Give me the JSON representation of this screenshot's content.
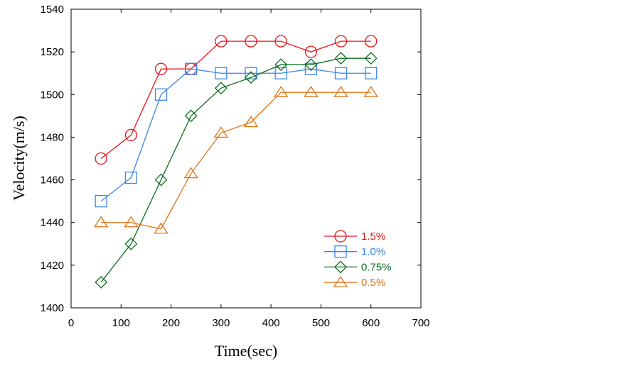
{
  "chart_data": {
    "type": "line",
    "title": "",
    "xlabel": "Time(sec)",
    "ylabel": "Velocity(m/s)",
    "xlim": [
      0,
      700
    ],
    "ylim": [
      1400,
      1540
    ],
    "xticks": [
      0,
      100,
      200,
      300,
      400,
      500,
      600,
      700
    ],
    "yticks": [
      1400,
      1420,
      1440,
      1460,
      1480,
      1500,
      1520,
      1540
    ],
    "grid": false,
    "legend_position": "bottom-right",
    "x": [
      60,
      120,
      180,
      240,
      300,
      360,
      420,
      480,
      540,
      600
    ],
    "series": [
      {
        "name": "1.5%",
        "color": "#e8141b",
        "marker": "circle",
        "values": [
          1470,
          1481,
          1512,
          1512,
          1525,
          1525,
          1525,
          1520,
          1525,
          1525
        ]
      },
      {
        "name": "1.0%",
        "color": "#3a86e8",
        "marker": "square",
        "values": [
          1450,
          1461,
          1500,
          1512,
          1510,
          1510,
          1510,
          1512,
          1510,
          1510
        ]
      },
      {
        "name": "0.75%",
        "color": "#0a6e1e",
        "marker": "diamond",
        "values": [
          1412,
          1430,
          1460,
          1490,
          1503,
          1508,
          1514,
          1514,
          1517,
          1517
        ]
      },
      {
        "name": "0.5%",
        "color": "#e07414",
        "marker": "triangle",
        "values": [
          1440,
          1440,
          1437,
          1463,
          1482,
          1487,
          1501,
          1501,
          1501,
          1501
        ]
      }
    ]
  }
}
